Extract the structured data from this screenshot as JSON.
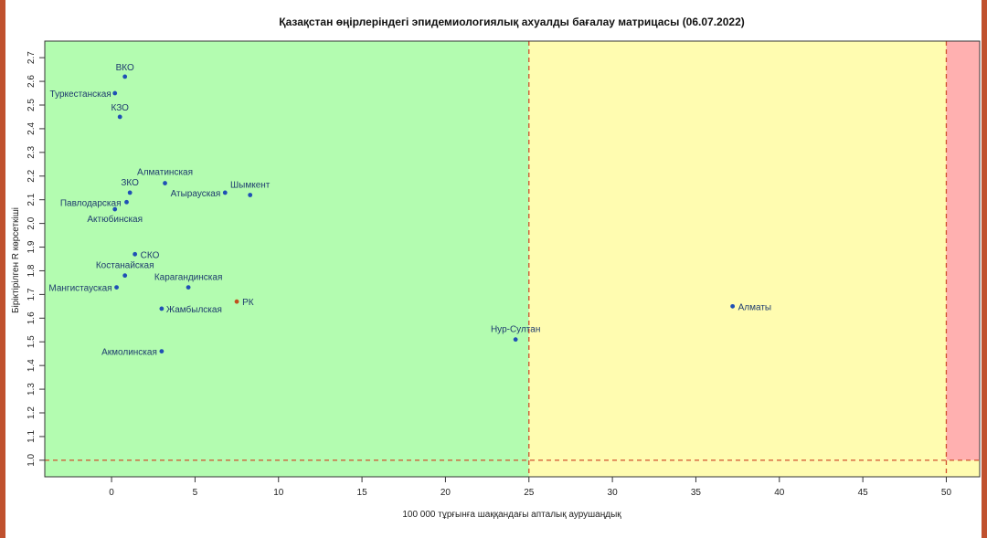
{
  "chart_data": {
    "type": "scatter",
    "title": "Қазақстан өңірлеріндегі эпидемиологиялық ахуалды бағалау матрицасы  (06.07.2022)",
    "xlabel": "100 000 тұрғынға шаққандағы апталық аурушаңдық",
    "ylabel": "Біріктірілген R көрсеткіші",
    "xlim": [
      -4,
      52
    ],
    "ylim": [
      0.93,
      2.77
    ],
    "xticks": [
      0,
      5,
      10,
      15,
      20,
      25,
      30,
      35,
      40,
      45,
      50
    ],
    "yticks": [
      1.0,
      1.1,
      1.2,
      1.3,
      1.4,
      1.5,
      1.6,
      1.7,
      1.8,
      1.9,
      2.0,
      2.1,
      2.2,
      2.3,
      2.4,
      2.5,
      2.6,
      2.7
    ],
    "zones": [
      {
        "name": "green",
        "color": "#b3fcb0",
        "x_from": -4,
        "x_to": 25
      },
      {
        "name": "yellow",
        "color": "#fffcb0",
        "x_from": 25,
        "x_to": 50
      },
      {
        "name": "red",
        "color": "#ffb0b0",
        "x_from": 50,
        "x_to": 52
      }
    ],
    "thresholds": {
      "x": [
        25,
        50
      ],
      "y": 1.0,
      "color": "#d0502e"
    },
    "grid": false,
    "points": [
      {
        "label": "ВКО",
        "x": 0.8,
        "y": 2.62
      },
      {
        "label": "Туркестанская",
        "x": 0.2,
        "y": 2.55
      },
      {
        "label": "КЗО",
        "x": 0.5,
        "y": 2.45
      },
      {
        "label": "Алматинская",
        "x": 3.2,
        "y": 2.17
      },
      {
        "label": "ЗКО",
        "x": 1.1,
        "y": 2.13
      },
      {
        "label": "Атырауская",
        "x": 6.8,
        "y": 2.13
      },
      {
        "label": "Шымкент",
        "x": 8.3,
        "y": 2.12
      },
      {
        "label": "Павлодарская",
        "x": 0.9,
        "y": 2.09
      },
      {
        "label": "Актюбинская",
        "x": 0.2,
        "y": 2.06
      },
      {
        "label": "СКО",
        "x": 1.4,
        "y": 1.87
      },
      {
        "label": "Костанайская",
        "x": 0.8,
        "y": 1.78
      },
      {
        "label": "Карагандинская",
        "x": 4.6,
        "y": 1.73
      },
      {
        "label": "Мангистауская",
        "x": 0.3,
        "y": 1.73
      },
      {
        "label": "РК",
        "x": 7.5,
        "y": 1.67,
        "color": "#c0501e"
      },
      {
        "label": "Жамбылская",
        "x": 3.0,
        "y": 1.64
      },
      {
        "label": "Алматы",
        "x": 37.2,
        "y": 1.65
      },
      {
        "label": "Нур-Султан",
        "x": 24.2,
        "y": 1.51
      },
      {
        "label": "Акмолинская",
        "x": 3.0,
        "y": 1.46
      }
    ],
    "point_color": "#1f4fb5"
  }
}
